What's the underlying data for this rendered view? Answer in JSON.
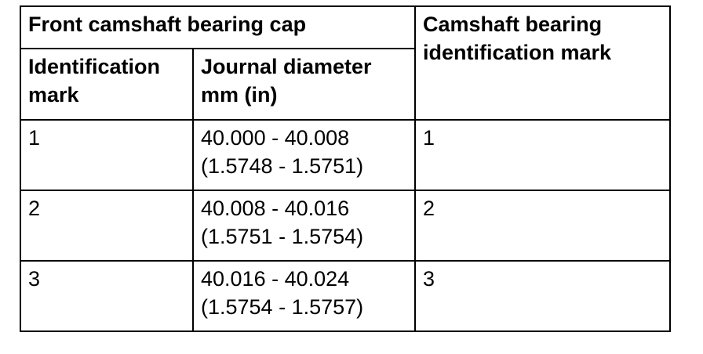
{
  "table": {
    "header": {
      "group_label": "Front camshaft bearing cap",
      "right_label_line1": "Camshaft bearing",
      "right_label_line2": "identification mark",
      "col1_line1": "Identification",
      "col1_line2": "mark",
      "col2_line1": "Journal diameter",
      "col2_line2": "mm (in)"
    },
    "rows": [
      {
        "mark": "1",
        "diameter_mm": "40.000 - 40.008",
        "diameter_in": "(1.5748 - 1.5751)",
        "bearing_mark": "1"
      },
      {
        "mark": "2",
        "diameter_mm": "40.008 - 40.016",
        "diameter_in": "(1.5751 - 1.5754)",
        "bearing_mark": "2"
      },
      {
        "mark": "3",
        "diameter_mm": "40.016 - 40.024",
        "diameter_in": "(1.5754 - 1.5757)",
        "bearing_mark": "3"
      }
    ]
  }
}
